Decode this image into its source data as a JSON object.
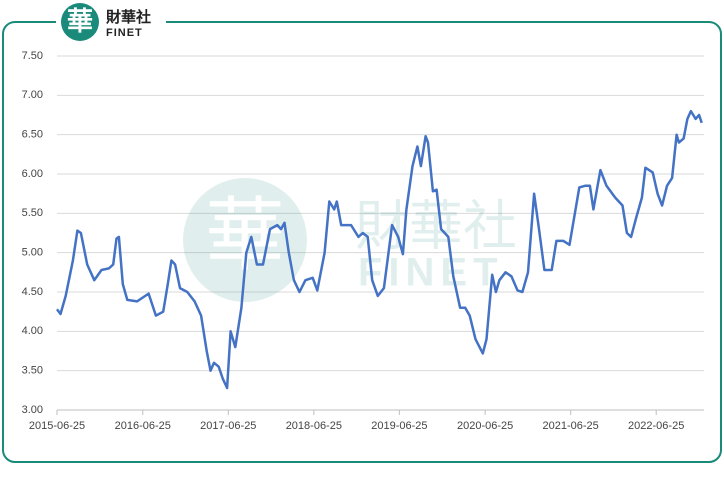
{
  "brand": {
    "glyph": "華",
    "name": "財華社",
    "latin": "FINET"
  },
  "chart_data": {
    "type": "line",
    "x": [
      "2015-06-25",
      "2015-07-10",
      "2015-08-01",
      "2015-09-01",
      "2015-09-20",
      "2015-10-05",
      "2015-11-01",
      "2015-12-01",
      "2016-01-01",
      "2016-02-01",
      "2016-02-20",
      "2016-03-05",
      "2016-03-15",
      "2016-04-01",
      "2016-04-20",
      "2016-06-01",
      "2016-07-20",
      "2016-08-20",
      "2016-09-20",
      "2016-10-10",
      "2016-10-25",
      "2016-11-10",
      "2016-12-01",
      "2017-01-01",
      "2017-02-01",
      "2017-03-01",
      "2017-03-25",
      "2017-04-10",
      "2017-04-25",
      "2017-05-15",
      "2017-06-01",
      "2017-06-20",
      "2017-07-05",
      "2017-07-25",
      "2017-08-20",
      "2017-09-10",
      "2017-10-01",
      "2017-10-25",
      "2017-11-20",
      "2017-12-20",
      "2018-01-20",
      "2018-02-05",
      "2018-02-20",
      "2018-03-10",
      "2018-04-01",
      "2018-04-25",
      "2018-05-20",
      "2018-06-20",
      "2018-07-10",
      "2018-08-10",
      "2018-08-30",
      "2018-09-20",
      "2018-10-01",
      "2018-10-20",
      "2018-12-01",
      "2019-01-01",
      "2019-01-20",
      "2019-02-10",
      "2019-03-01",
      "2019-03-25",
      "2019-04-20",
      "2019-05-25",
      "2019-06-20",
      "2019-07-10",
      "2019-07-25",
      "2019-08-20",
      "2019-09-10",
      "2019-09-25",
      "2019-10-15",
      "2019-10-25",
      "2019-11-15",
      "2019-12-01",
      "2019-12-20",
      "2020-01-20",
      "2020-02-10",
      "2020-03-10",
      "2020-04-01",
      "2020-04-20",
      "2020-05-15",
      "2020-06-15",
      "2020-07-01",
      "2020-07-25",
      "2020-08-10",
      "2020-08-25",
      "2020-09-20",
      "2020-10-15",
      "2020-11-10",
      "2020-12-01",
      "2020-12-25",
      "2021-01-20",
      "2021-02-10",
      "2021-03-05",
      "2021-04-05",
      "2021-04-25",
      "2021-05-25",
      "2021-06-20",
      "2021-07-10",
      "2021-08-01",
      "2021-08-25",
      "2021-09-15",
      "2021-09-30",
      "2021-10-15",
      "2021-10-30",
      "2021-11-25",
      "2022-01-01",
      "2022-02-01",
      "2022-02-20",
      "2022-03-10",
      "2022-04-01",
      "2022-04-25",
      "2022-05-10",
      "2022-06-10",
      "2022-07-01",
      "2022-07-20",
      "2022-08-10",
      "2022-09-01",
      "2022-09-20",
      "2022-09-30",
      "2022-10-20",
      "2022-11-05",
      "2022-11-20",
      "2022-12-10",
      "2022-12-25",
      "2023-01-05"
    ],
    "series": [
      {
        "color": "#4472c4",
        "values": [
          4.28,
          4.22,
          4.45,
          4.9,
          5.28,
          5.25,
          4.85,
          4.65,
          4.78,
          4.8,
          4.85,
          5.18,
          5.2,
          4.6,
          4.4,
          4.38,
          4.48,
          4.2,
          4.25,
          4.6,
          4.9,
          4.85,
          4.55,
          4.5,
          4.38,
          4.2,
          3.75,
          3.5,
          3.6,
          3.55,
          3.4,
          3.28,
          4.0,
          3.8,
          4.3,
          5.0,
          5.2,
          4.85,
          4.85,
          5.3,
          5.35,
          5.3,
          5.38,
          5.0,
          4.65,
          4.5,
          4.65,
          4.68,
          4.52,
          5.0,
          5.65,
          5.55,
          5.65,
          5.35,
          5.35,
          5.2,
          5.25,
          5.2,
          4.65,
          4.45,
          4.55,
          5.35,
          5.2,
          4.98,
          5.55,
          6.1,
          6.35,
          6.1,
          6.48,
          6.4,
          5.78,
          5.8,
          5.3,
          5.2,
          4.7,
          4.3,
          4.3,
          4.2,
          3.9,
          3.72,
          3.9,
          4.72,
          4.5,
          4.65,
          4.75,
          4.7,
          4.52,
          4.5,
          4.75,
          5.75,
          5.3,
          4.78,
          4.78,
          5.15,
          5.15,
          5.1,
          5.45,
          5.83,
          5.85,
          5.85,
          5.55,
          5.8,
          6.05,
          5.85,
          5.7,
          5.6,
          5.25,
          5.2,
          5.45,
          5.7,
          6.08,
          6.02,
          5.75,
          5.6,
          5.85,
          5.95,
          6.5,
          6.4,
          6.45,
          6.7,
          6.8,
          6.7,
          6.75,
          6.65
        ]
      }
    ],
    "xlim": [
      "2015-06-25",
      "2023-01-15"
    ],
    "xticks": [
      "2015-06-25",
      "2016-06-25",
      "2017-06-25",
      "2018-06-25",
      "2019-06-25",
      "2020-06-25",
      "2021-06-25",
      "2022-06-25"
    ],
    "ylim": [
      3,
      7.5
    ],
    "yticks": [
      {
        "value": 3,
        "label": "3.00"
      },
      {
        "value": 3.5,
        "label": "3.50"
      },
      {
        "value": 4,
        "label": "4.00"
      },
      {
        "value": 4.5,
        "label": "4.50"
      },
      {
        "value": 5,
        "label": "5.00"
      },
      {
        "value": 5.5,
        "label": "5.50"
      },
      {
        "value": 6,
        "label": "6.00"
      },
      {
        "value": 6.5,
        "label": "6.50"
      },
      {
        "value": 7,
        "label": "7.00"
      },
      {
        "value": 7.5,
        "label": "7.50"
      }
    ],
    "grid": true
  }
}
